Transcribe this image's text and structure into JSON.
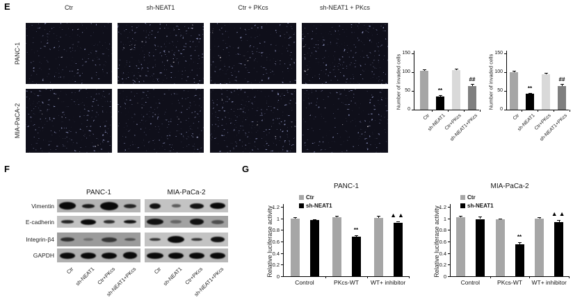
{
  "panels": {
    "e": {
      "label": "E",
      "col_headers": [
        "Ctr",
        "sh-NEAT1",
        "Ctr + PKcs",
        "sh-NEAT1 + PKcs"
      ],
      "row_labels": [
        "PANC-1",
        "MIA-PaCA-2"
      ]
    },
    "f": {
      "label": "F",
      "group_titles": [
        "PANC-1",
        "MIA-PaCa-2"
      ],
      "protein_labels": [
        "Vimentin",
        "E-cadherin",
        "Integrin-β4",
        "GAPDH"
      ],
      "lane_labels": [
        "Ctr",
        "sh-NEAT1",
        "Ctr+PKcs",
        "sh-NEAT1+PKcs"
      ],
      "blot_bands": {
        "PANC-1": {
          "Vimentin": {
            "bg": "#b4b4b4",
            "bands": [
              [
                0.95,
                11,
                1
              ],
              [
                0.72,
                6,
                0.9
              ],
              [
                1.0,
                12,
                1
              ],
              [
                0.7,
                6,
                0.85
              ]
            ]
          },
          "E-cadherin": {
            "bg": "#c2c2c2",
            "bands": [
              [
                0.68,
                4.5,
                0.85
              ],
              [
                0.88,
                8,
                1
              ],
              [
                0.62,
                4.5,
                0.8
              ],
              [
                0.7,
                5.5,
                0.95
              ]
            ]
          },
          "Integrin-β4": {
            "bg": "#9b9b9b",
            "bands": [
              [
                0.78,
                6,
                0.75
              ],
              [
                0.55,
                3.5,
                0.3
              ],
              [
                0.85,
                7,
                0.7
              ],
              [
                0.65,
                4.5,
                0.5
              ]
            ]
          },
          "GAPDH": {
            "bg": "#b0b0b0",
            "bands": [
              [
                0.85,
                9,
                1
              ],
              [
                0.85,
                9,
                1
              ],
              [
                0.85,
                9,
                1
              ],
              [
                0.8,
                10,
                1
              ]
            ]
          }
        },
        "MIA-PaCa-2": {
          "Vimentin": {
            "bg": "#c3c3c3",
            "bands": [
              [
                0.6,
                8,
                0.95
              ],
              [
                0.5,
                4.5,
                0.55
              ],
              [
                0.8,
                8,
                0.95
              ],
              [
                0.85,
                9,
                1
              ]
            ]
          },
          "E-cadherin": {
            "bg": "#a2a2a2",
            "bands": [
              [
                0.92,
                9,
                0.95
              ],
              [
                0.6,
                4.5,
                0.4
              ],
              [
                0.78,
                9,
                0.95
              ],
              [
                0.7,
                6,
                0.55
              ]
            ]
          },
          "Integrin-β4": {
            "bg": "#c3c3c3",
            "bands": [
              [
                0.6,
                4.5,
                0.75
              ],
              [
                0.92,
                10,
                1
              ],
              [
                0.6,
                4.5,
                0.75
              ],
              [
                0.75,
                8.5,
                0.95
              ]
            ]
          },
          "GAPDH": {
            "bg": "#b8b8b8",
            "bands": [
              [
                0.9,
                9,
                1
              ],
              [
                0.85,
                9,
                1
              ],
              [
                0.85,
                9,
                1
              ],
              [
                0.85,
                9,
                1
              ]
            ]
          }
        }
      }
    },
    "g": {
      "label": "G"
    }
  },
  "chart_data": [
    {
      "id": "e1",
      "type": "bar",
      "cell_line": "PANC-1",
      "title": "",
      "xlabel": "",
      "ylabel": "Number of invaded cells",
      "categories": [
        "Ctr",
        "sh-NEAT1",
        "Ctr+PKcs",
        "sh-NEAT1+PKcs"
      ],
      "values": [
        103,
        35,
        105,
        63
      ],
      "errors": [
        5,
        3,
        4,
        6
      ],
      "annotations": [
        "",
        "**",
        "",
        "##"
      ],
      "bar_colors": [
        "#a6a6a6",
        "#000000",
        "#d9d9d9",
        "#7f7f7f"
      ],
      "ylim": [
        0,
        150
      ],
      "yticks": [
        0,
        50,
        100,
        150
      ],
      "grid": false,
      "legend": false
    },
    {
      "id": "e2",
      "type": "bar",
      "cell_line": "MIA-PaCa-2",
      "title": "",
      "xlabel": "",
      "ylabel": "Number of invaded cells",
      "categories": [
        "Ctr",
        "sh-NEAT1",
        "Ctr+PKcs",
        "sh-NEAT1+PKcs"
      ],
      "values": [
        100,
        42,
        94,
        63
      ],
      "errors": [
        4,
        3,
        5,
        6
      ],
      "annotations": [
        "",
        "**",
        "",
        "##"
      ],
      "bar_colors": [
        "#a6a6a6",
        "#000000",
        "#d9d9d9",
        "#7f7f7f"
      ],
      "ylim": [
        0,
        150
      ],
      "yticks": [
        0,
        50,
        100,
        150
      ],
      "grid": false,
      "legend": false
    },
    {
      "id": "g1",
      "type": "grouped-bar",
      "title": "PANC-1",
      "xlabel": "",
      "ylabel": "Relative luciferase activity",
      "categories": [
        "Control",
        "PKcs-WT",
        "WT+ inhibitor"
      ],
      "series": [
        {
          "name": "Ctr",
          "color": "#a6a6a6",
          "values": [
            1.0,
            1.02,
            1.01
          ],
          "errors": [
            0.02,
            0.03,
            0.03
          ]
        },
        {
          "name": "sh-NEAT1",
          "color": "#000000",
          "values": [
            0.97,
            0.68,
            0.93
          ],
          "errors": [
            0.02,
            0.03,
            0.02
          ]
        }
      ],
      "annotations": [
        {
          "category": "PKcs-WT",
          "series": "sh-NEAT1",
          "text": "**"
        },
        {
          "category": "WT+ inhibitor",
          "series": "sh-NEAT1",
          "text": "▲▲"
        }
      ],
      "ylim": [
        0,
        1.2
      ],
      "yticks": [
        0,
        0.2,
        0.4,
        0.6,
        0.8,
        1,
        1.2
      ],
      "grid": false,
      "legend_position": "top-left"
    },
    {
      "id": "g2",
      "type": "grouped-bar",
      "title": "MIA-PaCa-2",
      "xlabel": "",
      "ylabel": "Relative luciferase activity",
      "categories": [
        "Control",
        "PKcs-WT",
        "WT+ inhibitor"
      ],
      "series": [
        {
          "name": "Ctr",
          "color": "#a6a6a6",
          "values": [
            1.02,
            0.99,
            1.0
          ],
          "errors": [
            0.02,
            0.01,
            0.02
          ]
        },
        {
          "name": "sh-NEAT1",
          "color": "#000000",
          "values": [
            0.99,
            0.55,
            0.94
          ],
          "errors": [
            0.04,
            0.04,
            0.03
          ]
        }
      ],
      "annotations": [
        {
          "category": "PKcs-WT",
          "series": "sh-NEAT1",
          "text": "**"
        },
        {
          "category": "WT+ inhibitor",
          "series": "sh-NEAT1",
          "text": "▲▲"
        }
      ],
      "ylim": [
        0,
        1.2
      ],
      "yticks": [
        0,
        0.2,
        0.4,
        0.6,
        0.8,
        1,
        1.2
      ],
      "grid": false,
      "legend_position": "top-left"
    }
  ],
  "colors": {
    "ctr_bar": "#a6a6a6",
    "sh_neat1_bar": "#000000",
    "ctr_pkcs_bar": "#d9d9d9",
    "sh_neat1_pkcs_bar": "#7f7f7f",
    "tissue_background": "#d6ccc6",
    "tissue_blob": "#7f86aa"
  }
}
